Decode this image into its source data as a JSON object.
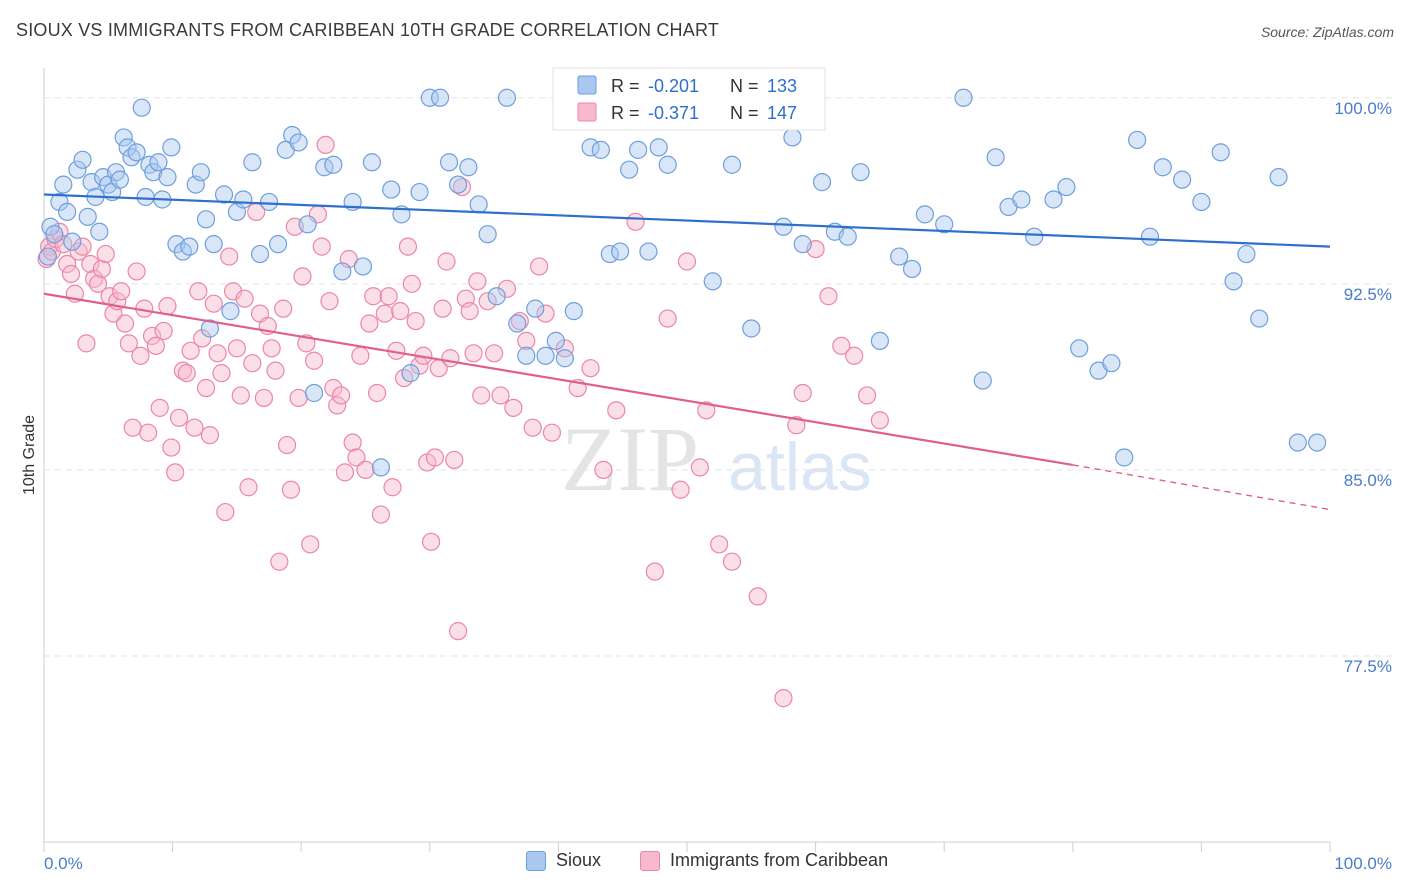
{
  "title": "SIOUX VS IMMIGRANTS FROM CARIBBEAN 10TH GRADE CORRELATION CHART",
  "source": "Source: ZipAtlas.com",
  "watermark": {
    "zip": "ZIP",
    "atlas": "atlas"
  },
  "legend": {
    "r_label": "R =",
    "n_label": "N =",
    "series": [
      {
        "r": "-0.201",
        "n": "133"
      },
      {
        "r": "-0.371",
        "n": "147"
      }
    ]
  },
  "bottom_legend": [
    "Sioux",
    "Immigrants from Caribbean"
  ],
  "colors": {
    "sioux_fill": "#a9c8f0",
    "sioux_stroke": "#6f9fdc",
    "sioux_line": "#2f6fcc",
    "carib_fill": "#f7b9cc",
    "carib_stroke": "#ec86a6",
    "carib_line": "#e0608d",
    "tick_text": "#4a7cc9",
    "grid": "#e3e3e3"
  },
  "chart_data": {
    "type": "scatter",
    "title": "SIOUX VS IMMIGRANTS FROM CARIBBEAN 10TH GRADE CORRELATION CHART",
    "xlabel": "",
    "ylabel": "10th Grade",
    "xlim": [
      0,
      100
    ],
    "ylim": [
      70.0,
      101.2
    ],
    "y_ticks": [
      77.5,
      85.0,
      92.5,
      100.0
    ],
    "y_tick_labels": [
      "77.5%",
      "85.0%",
      "92.5%",
      "100.0%"
    ],
    "x_tick_labels": [
      "0.0%",
      "100.0%"
    ],
    "grid": true,
    "legend_position": "top-center",
    "series": [
      {
        "name": "Sioux",
        "R": -0.201,
        "N": 133,
        "trend": {
          "x": [
            0,
            100
          ],
          "y": [
            96.1,
            94.0
          ]
        },
        "points": [
          [
            0.3,
            93.6
          ],
          [
            0.5,
            94.8
          ],
          [
            0.8,
            94.5
          ],
          [
            1.2,
            95.8
          ],
          [
            1.5,
            96.5
          ],
          [
            1.8,
            95.4
          ],
          [
            2.2,
            94.2
          ],
          [
            2.6,
            97.1
          ],
          [
            3.0,
            97.5
          ],
          [
            3.4,
            95.2
          ],
          [
            3.7,
            96.6
          ],
          [
            4.0,
            96.0
          ],
          [
            4.3,
            94.6
          ],
          [
            4.6,
            96.8
          ],
          [
            5.0,
            96.5
          ],
          [
            5.3,
            96.2
          ],
          [
            5.6,
            97.0
          ],
          [
            5.9,
            96.7
          ],
          [
            6.2,
            98.4
          ],
          [
            6.5,
            98.0
          ],
          [
            6.8,
            97.6
          ],
          [
            7.2,
            97.8
          ],
          [
            7.6,
            99.6
          ],
          [
            7.9,
            96.0
          ],
          [
            8.2,
            97.3
          ],
          [
            8.5,
            97.0
          ],
          [
            8.9,
            97.4
          ],
          [
            9.2,
            95.9
          ],
          [
            9.6,
            96.8
          ],
          [
            9.9,
            98.0
          ],
          [
            10.3,
            94.1
          ],
          [
            10.8,
            93.8
          ],
          [
            11.3,
            94.0
          ],
          [
            11.8,
            96.5
          ],
          [
            12.2,
            97.0
          ],
          [
            12.6,
            95.1
          ],
          [
            12.9,
            90.7
          ],
          [
            13.2,
            94.1
          ],
          [
            14.0,
            96.1
          ],
          [
            14.5,
            91.4
          ],
          [
            15.0,
            95.4
          ],
          [
            15.5,
            95.9
          ],
          [
            16.2,
            97.4
          ],
          [
            16.8,
            93.7
          ],
          [
            17.5,
            95.8
          ],
          [
            18.2,
            94.1
          ],
          [
            18.8,
            97.9
          ],
          [
            19.3,
            98.5
          ],
          [
            19.8,
            98.2
          ],
          [
            20.5,
            94.9
          ],
          [
            21.0,
            88.1
          ],
          [
            21.8,
            97.2
          ],
          [
            22.5,
            97.3
          ],
          [
            23.2,
            93.0
          ],
          [
            24.0,
            95.8
          ],
          [
            24.8,
            93.2
          ],
          [
            25.5,
            97.4
          ],
          [
            26.2,
            85.1
          ],
          [
            27.0,
            96.3
          ],
          [
            27.8,
            95.3
          ],
          [
            28.5,
            88.9
          ],
          [
            29.2,
            96.2
          ],
          [
            30.0,
            100.0
          ],
          [
            30.8,
            100.0
          ],
          [
            31.5,
            97.4
          ],
          [
            32.2,
            96.5
          ],
          [
            33.0,
            97.2
          ],
          [
            33.8,
            95.7
          ],
          [
            34.5,
            94.5
          ],
          [
            35.2,
            92.0
          ],
          [
            36.0,
            100.0
          ],
          [
            36.8,
            90.9
          ],
          [
            37.5,
            89.6
          ],
          [
            38.2,
            91.5
          ],
          [
            39.0,
            89.6
          ],
          [
            39.8,
            90.2
          ],
          [
            40.5,
            89.5
          ],
          [
            41.2,
            91.4
          ],
          [
            41.8,
            100.0
          ],
          [
            42.5,
            98.0
          ],
          [
            43.3,
            97.9
          ],
          [
            44.0,
            93.7
          ],
          [
            44.8,
            93.8
          ],
          [
            45.5,
            97.1
          ],
          [
            46.2,
            97.9
          ],
          [
            47.0,
            93.8
          ],
          [
            47.8,
            98.0
          ],
          [
            48.5,
            97.3
          ],
          [
            50.0,
            100.0
          ],
          [
            52.0,
            92.6
          ],
          [
            53.5,
            97.3
          ],
          [
            55.0,
            90.7
          ],
          [
            56.0,
            100.0
          ],
          [
            57.5,
            94.8
          ],
          [
            58.2,
            98.4
          ],
          [
            59.0,
            94.1
          ],
          [
            60.5,
            96.6
          ],
          [
            61.5,
            94.6
          ],
          [
            62.5,
            94.4
          ],
          [
            63.5,
            97.0
          ],
          [
            65.0,
            90.2
          ],
          [
            66.5,
            93.6
          ],
          [
            67.5,
            93.1
          ],
          [
            68.5,
            95.3
          ],
          [
            70.0,
            94.9
          ],
          [
            71.5,
            100.0
          ],
          [
            73.0,
            88.6
          ],
          [
            74.0,
            97.6
          ],
          [
            75.0,
            95.6
          ],
          [
            76.0,
            95.9
          ],
          [
            77.0,
            94.4
          ],
          [
            78.5,
            95.9
          ],
          [
            79.5,
            96.4
          ],
          [
            80.5,
            89.9
          ],
          [
            82.0,
            89.0
          ],
          [
            83.0,
            89.3
          ],
          [
            84.0,
            85.5
          ],
          [
            85.0,
            98.3
          ],
          [
            86.0,
            94.4
          ],
          [
            87.0,
            97.2
          ],
          [
            88.5,
            96.7
          ],
          [
            90.0,
            95.8
          ],
          [
            91.5,
            97.8
          ],
          [
            92.5,
            92.6
          ],
          [
            93.5,
            93.7
          ],
          [
            94.5,
            91.1
          ],
          [
            96.0,
            96.8
          ],
          [
            97.5,
            86.1
          ],
          [
            99.0,
            86.1
          ]
        ]
      },
      {
        "name": "Immigrants from Caribbean",
        "R": -0.371,
        "N": 147,
        "trend": {
          "x": [
            0,
            80
          ],
          "y": [
            92.1,
            85.2
          ]
        },
        "trend_dashed": {
          "x": [
            80,
            100
          ],
          "y": [
            85.2,
            83.4
          ]
        },
        "points": [
          [
            0.2,
            93.5
          ],
          [
            0.4,
            94.0
          ],
          [
            0.6,
            93.8
          ],
          [
            0.9,
            94.3
          ],
          [
            1.2,
            94.6
          ],
          [
            1.5,
            94.1
          ],
          [
            1.8,
            93.3
          ],
          [
            2.1,
            92.9
          ],
          [
            2.4,
            92.1
          ],
          [
            2.7,
            93.8
          ],
          [
            3.0,
            94.0
          ],
          [
            3.3,
            90.1
          ],
          [
            3.6,
            93.3
          ],
          [
            3.9,
            92.7
          ],
          [
            4.2,
            92.5
          ],
          [
            4.5,
            93.1
          ],
          [
            4.8,
            93.7
          ],
          [
            5.1,
            92.0
          ],
          [
            5.4,
            91.3
          ],
          [
            5.7,
            91.8
          ],
          [
            6.0,
            92.2
          ],
          [
            6.3,
            90.9
          ],
          [
            6.6,
            90.1
          ],
          [
            6.9,
            86.7
          ],
          [
            7.2,
            93.0
          ],
          [
            7.5,
            89.6
          ],
          [
            7.8,
            91.5
          ],
          [
            8.1,
            86.5
          ],
          [
            8.4,
            90.4
          ],
          [
            8.7,
            90.0
          ],
          [
            9.0,
            87.5
          ],
          [
            9.3,
            90.6
          ],
          [
            9.6,
            91.6
          ],
          [
            9.9,
            85.9
          ],
          [
            10.2,
            84.9
          ],
          [
            10.5,
            87.1
          ],
          [
            10.8,
            89.0
          ],
          [
            11.1,
            88.9
          ],
          [
            11.4,
            89.8
          ],
          [
            11.7,
            86.7
          ],
          [
            12.0,
            92.2
          ],
          [
            12.3,
            90.3
          ],
          [
            12.6,
            88.3
          ],
          [
            12.9,
            86.4
          ],
          [
            13.2,
            91.7
          ],
          [
            13.5,
            89.7
          ],
          [
            13.8,
            88.9
          ],
          [
            14.1,
            83.3
          ],
          [
            14.4,
            93.6
          ],
          [
            14.7,
            92.2
          ],
          [
            15.0,
            89.9
          ],
          [
            15.3,
            88.0
          ],
          [
            15.6,
            91.9
          ],
          [
            15.9,
            84.3
          ],
          [
            16.2,
            89.3
          ],
          [
            16.5,
            95.4
          ],
          [
            16.8,
            91.3
          ],
          [
            17.1,
            87.9
          ],
          [
            17.4,
            90.8
          ],
          [
            17.7,
            89.9
          ],
          [
            18.0,
            89.0
          ],
          [
            18.3,
            81.3
          ],
          [
            18.6,
            91.5
          ],
          [
            18.9,
            86.0
          ],
          [
            19.2,
            84.2
          ],
          [
            19.5,
            94.8
          ],
          [
            19.8,
            87.9
          ],
          [
            20.1,
            92.8
          ],
          [
            20.4,
            90.1
          ],
          [
            20.7,
            82.0
          ],
          [
            21.0,
            89.4
          ],
          [
            21.3,
            95.3
          ],
          [
            21.6,
            94.0
          ],
          [
            21.9,
            98.1
          ],
          [
            22.2,
            91.8
          ],
          [
            22.5,
            88.3
          ],
          [
            22.8,
            87.6
          ],
          [
            23.1,
            88.0
          ],
          [
            23.4,
            84.9
          ],
          [
            23.7,
            93.5
          ],
          [
            24.0,
            86.1
          ],
          [
            24.3,
            85.5
          ],
          [
            24.6,
            89.6
          ],
          [
            25.0,
            85.0
          ],
          [
            25.3,
            90.9
          ],
          [
            25.6,
            92.0
          ],
          [
            25.9,
            88.1
          ],
          [
            26.2,
            83.2
          ],
          [
            26.5,
            91.3
          ],
          [
            26.8,
            92.0
          ],
          [
            27.1,
            84.3
          ],
          [
            27.4,
            89.8
          ],
          [
            27.7,
            91.4
          ],
          [
            28.0,
            88.7
          ],
          [
            28.3,
            94.0
          ],
          [
            28.6,
            92.5
          ],
          [
            28.9,
            91.0
          ],
          [
            29.2,
            89.2
          ],
          [
            29.5,
            89.6
          ],
          [
            29.8,
            85.3
          ],
          [
            30.1,
            82.1
          ],
          [
            30.4,
            85.5
          ],
          [
            30.7,
            89.1
          ],
          [
            31.0,
            91.5
          ],
          [
            31.3,
            93.4
          ],
          [
            31.6,
            89.5
          ],
          [
            31.9,
            85.4
          ],
          [
            32.2,
            78.5
          ],
          [
            32.5,
            96.4
          ],
          [
            32.8,
            91.9
          ],
          [
            33.1,
            91.4
          ],
          [
            33.4,
            89.7
          ],
          [
            33.7,
            92.6
          ],
          [
            34.0,
            88.0
          ],
          [
            34.5,
            91.8
          ],
          [
            35.0,
            89.7
          ],
          [
            35.5,
            88.0
          ],
          [
            36.0,
            92.3
          ],
          [
            36.5,
            87.5
          ],
          [
            37.0,
            91.0
          ],
          [
            37.5,
            90.2
          ],
          [
            38.0,
            86.7
          ],
          [
            38.5,
            93.2
          ],
          [
            39.0,
            91.3
          ],
          [
            39.5,
            86.5
          ],
          [
            40.5,
            89.9
          ],
          [
            41.5,
            88.3
          ],
          [
            42.5,
            89.1
          ],
          [
            43.5,
            85.0
          ],
          [
            44.5,
            87.4
          ],
          [
            46.0,
            95.0
          ],
          [
            47.5,
            80.9
          ],
          [
            48.5,
            91.1
          ],
          [
            49.5,
            84.2
          ],
          [
            50.0,
            93.4
          ],
          [
            51.0,
            85.1
          ],
          [
            51.5,
            87.4
          ],
          [
            52.5,
            82.0
          ],
          [
            53.5,
            81.3
          ],
          [
            55.5,
            79.9
          ],
          [
            57.5,
            75.8
          ],
          [
            58.5,
            86.8
          ],
          [
            59.0,
            88.1
          ],
          [
            60.0,
            93.9
          ],
          [
            61.0,
            92.0
          ],
          [
            62.0,
            90.0
          ],
          [
            63.0,
            89.6
          ],
          [
            64.0,
            88.0
          ],
          [
            65.0,
            87.0
          ]
        ]
      }
    ]
  }
}
